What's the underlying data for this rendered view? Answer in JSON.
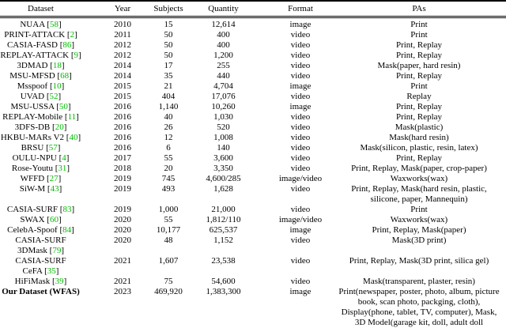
{
  "colors": {
    "citation": "#00bb00"
  },
  "table": {
    "columns": [
      "Dataset",
      "Year",
      "Subjects",
      "Quantity",
      "Format",
      "PAs"
    ],
    "rows": [
      {
        "dataset": [
          {
            "text": "NUAA",
            "ref": "58"
          }
        ],
        "year": "2010",
        "subjects": "15",
        "quantity": "12,614",
        "format": "image",
        "pas": [
          "Print"
        ]
      },
      {
        "dataset": [
          {
            "text": "PRINT-ATTACK",
            "ref": "2"
          }
        ],
        "year": "2011",
        "subjects": "50",
        "quantity": "400",
        "format": "video",
        "pas": [
          "Print"
        ]
      },
      {
        "dataset": [
          {
            "text": "CASIA-FASD",
            "ref": "86"
          }
        ],
        "year": "2012",
        "subjects": "50",
        "quantity": "400",
        "format": "video",
        "pas": [
          "Print, Replay"
        ]
      },
      {
        "dataset": [
          {
            "text": "REPLAY-ATTACK",
            "ref": "9"
          }
        ],
        "year": "2012",
        "subjects": "50",
        "quantity": "1,200",
        "format": "video",
        "pas": [
          "Print, Replay"
        ]
      },
      {
        "dataset": [
          {
            "text": "3DMAD",
            "ref": "18"
          }
        ],
        "year": "2014",
        "subjects": "17",
        "quantity": "255",
        "format": "video",
        "pas": [
          "Mask(paper, hard resin)"
        ]
      },
      {
        "dataset": [
          {
            "text": "MSU-MFSD",
            "ref": "68"
          }
        ],
        "year": "2014",
        "subjects": "35",
        "quantity": "440",
        "format": "video",
        "pas": [
          "Print, Replay"
        ]
      },
      {
        "dataset": [
          {
            "text": "Msspoof",
            "ref": "10"
          }
        ],
        "year": "2015",
        "subjects": "21",
        "quantity": "4,704",
        "format": "image",
        "pas": [
          "Print"
        ]
      },
      {
        "dataset": [
          {
            "text": "UVAD",
            "ref": "52"
          }
        ],
        "year": "2015",
        "subjects": "404",
        "quantity": "17,076",
        "format": "video",
        "pas": [
          "Replay"
        ]
      },
      {
        "dataset": [
          {
            "text": "MSU-USSA",
            "ref": "50"
          }
        ],
        "year": "2016",
        "subjects": "1,140",
        "quantity": "10,260",
        "format": "image",
        "pas": [
          "Print, Replay"
        ]
      },
      {
        "dataset": [
          {
            "text": "REPLAY-Mobile",
            "ref": "11"
          }
        ],
        "year": "2016",
        "subjects": "40",
        "quantity": "1,030",
        "format": "video",
        "pas": [
          "Print, Replay"
        ]
      },
      {
        "dataset": [
          {
            "text": "3DFS-DB",
            "ref": "20"
          }
        ],
        "year": "2016",
        "subjects": "26",
        "quantity": "520",
        "format": "video",
        "pas": [
          "Mask(plastic)"
        ]
      },
      {
        "dataset": [
          {
            "text": "HKBU-MARs V2",
            "ref": "40"
          }
        ],
        "year": "2016",
        "subjects": "12",
        "quantity": "1,008",
        "format": "video",
        "pas": [
          "Mask(hard resin)"
        ]
      },
      {
        "dataset": [
          {
            "text": "BRSU",
            "ref": "57"
          }
        ],
        "year": "2016",
        "subjects": "6",
        "quantity": "140",
        "format": "video",
        "pas": [
          "Mask(silicon, plastic, resin, latex)"
        ]
      },
      {
        "dataset": [
          {
            "text": "OULU-NPU",
            "ref": "4"
          }
        ],
        "year": "2017",
        "subjects": "55",
        "quantity": "3,600",
        "format": "video",
        "pas": [
          "Print, Replay"
        ]
      },
      {
        "dataset": [
          {
            "text": "Rose-Youtu",
            "ref": "31"
          }
        ],
        "year": "2018",
        "subjects": "20",
        "quantity": "3,350",
        "format": "video",
        "pas": [
          "Print, Replay, Mask(paper, crop-paper)"
        ]
      },
      {
        "dataset": [
          {
            "text": "WFFD",
            "ref": "27"
          }
        ],
        "year": "2019",
        "subjects": "745",
        "quantity": "4,600/285",
        "format": "image/video",
        "pas": [
          "Waxworks(wax)"
        ]
      },
      {
        "dataset": [
          {
            "text": "SiW-M",
            "ref": "43"
          }
        ],
        "year": "2019",
        "subjects": "493",
        "quantity": "1,628",
        "format": "video",
        "pas": [
          "Print, Replay, Mask(hard resin, plastic,",
          "silicone, paper, Mannequin)"
        ]
      },
      {
        "dataset": [
          {
            "text": "CASIA-SURF",
            "ref": "83"
          }
        ],
        "year": "2019",
        "subjects": "1,000",
        "quantity": "21,000",
        "format": "video",
        "pas": [
          "Print"
        ]
      },
      {
        "dataset": [
          {
            "text": "SWAX",
            "ref": "60"
          }
        ],
        "year": "2020",
        "subjects": "55",
        "quantity": "1,812/110",
        "format": "image/video",
        "pas": [
          "Waxworks(wax)"
        ]
      },
      {
        "dataset": [
          {
            "text": "CelebA-Spoof",
            "ref": "84"
          }
        ],
        "year": "2020",
        "subjects": "10,177",
        "quantity": "625,537",
        "format": "image",
        "pas": [
          "Print, Replay, Mask(paper)"
        ]
      },
      {
        "dataset": [
          {
            "text": "CASIA-SURF"
          },
          {
            "text": "3DMask",
            "ref": "79"
          }
        ],
        "year": "2020",
        "subjects": "48",
        "quantity": "1,152",
        "format": "video",
        "pas": [
          "Mask(3D print)"
        ]
      },
      {
        "dataset": [
          {
            "text": "CASIA-SURF"
          },
          {
            "text": "CeFA",
            "ref": "35"
          }
        ],
        "year": "2021",
        "subjects": "1,607",
        "quantity": "23,538",
        "format": "video",
        "pas": [
          "Print, Replay, Mask(3D print, silica gel)"
        ]
      },
      {
        "dataset": [
          {
            "text": "HiFiMask",
            "ref": "39"
          }
        ],
        "year": "2021",
        "subjects": "75",
        "quantity": "54,600",
        "format": "video",
        "pas": [
          "Mask(transparent, plaster, resin)"
        ]
      },
      {
        "dataset": [
          {
            "text": "Our Dataset (WFAS)"
          }
        ],
        "bold": true,
        "year": "2023",
        "subjects": "469,920",
        "quantity": "1,383,300",
        "format": "image",
        "pas": [
          "Print(newspaper, poster, photo, album, picture",
          "book, scan photo, packging, cloth),",
          "Display(phone, tablet, TV, computer), Mask,",
          "3D Model(garage kit, doll, adult doll"
        ]
      }
    ]
  }
}
